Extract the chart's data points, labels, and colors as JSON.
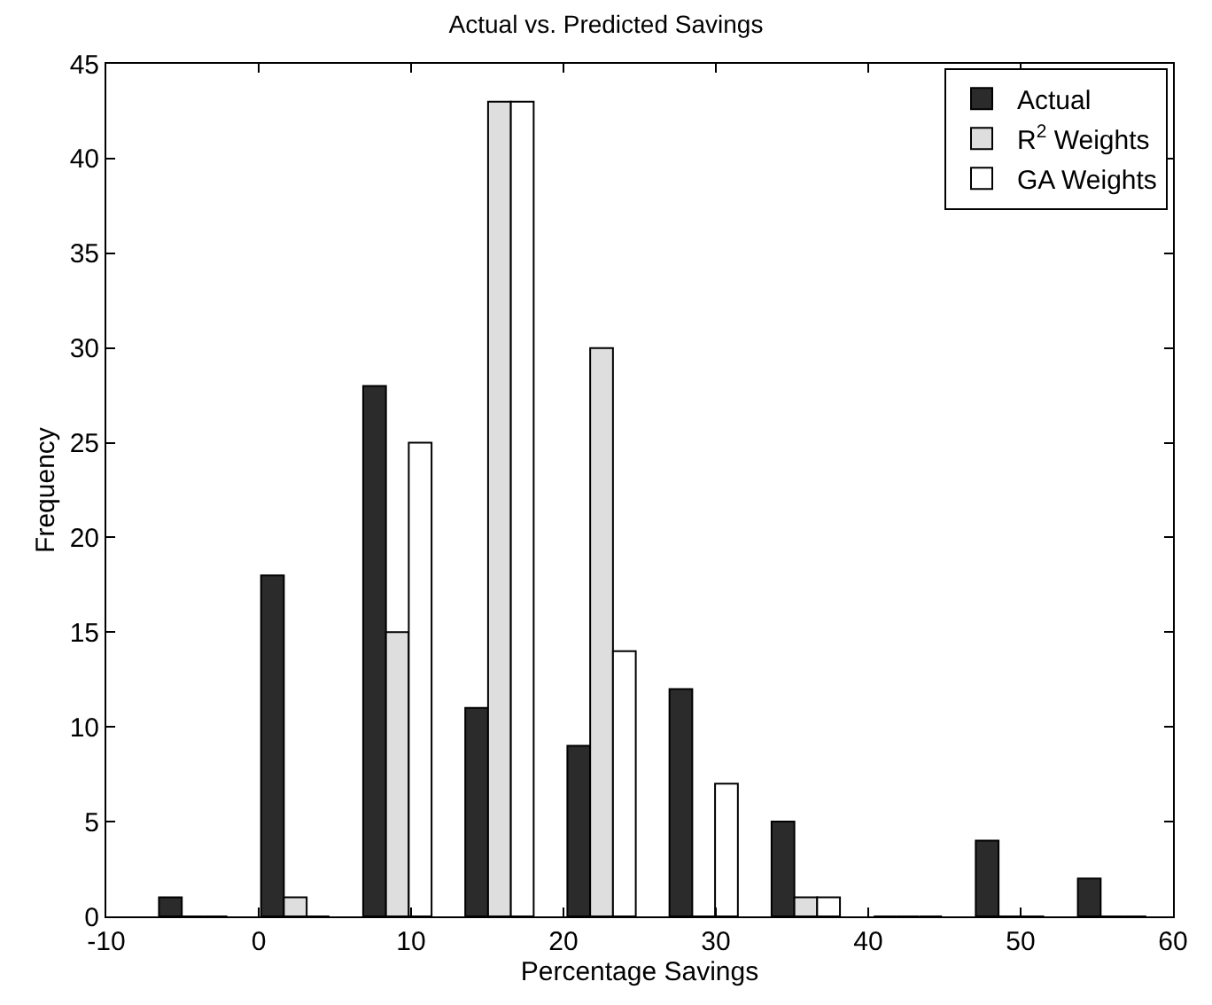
{
  "chart_data": {
    "type": "bar",
    "title": "Actual vs. Predicted Savings",
    "xlabel": "Percentage Savings",
    "ylabel": "Frequency",
    "x": [
      -4.3,
      2.4,
      9.1,
      15.8,
      22.5,
      29.2,
      35.9,
      42.6,
      49.3,
      56.0
    ],
    "series": [
      {
        "name": "Actual",
        "color": "#2b2b2b",
        "values": [
          1,
          18,
          28,
          11,
          9,
          12,
          5,
          0,
          4,
          2
        ]
      },
      {
        "name": "R$^{2}$ Weights",
        "color": "#dedede",
        "values": [
          0,
          1,
          15,
          43,
          30,
          0,
          1,
          0,
          0,
          0
        ]
      },
      {
        "name": "GA Weights",
        "color": "#ffffff",
        "values": [
          0,
          0,
          25,
          43,
          14,
          7,
          1,
          0,
          0,
          0
        ]
      }
    ],
    "xlim": [
      -10,
      60
    ],
    "xticks": [
      -10,
      0,
      10,
      20,
      30,
      40,
      50,
      60
    ],
    "ylim": [
      0,
      45
    ],
    "yticks": [
      0,
      5,
      10,
      15,
      20,
      25,
      30,
      35,
      40,
      45
    ],
    "legend": "top right"
  }
}
